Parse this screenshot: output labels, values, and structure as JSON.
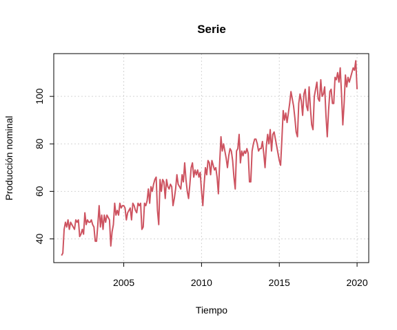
{
  "chart_data": {
    "type": "line",
    "title": "Serie",
    "xlabel": "Tiempo",
    "ylabel": "Producción nominal",
    "xlim": [
      2000.5,
      2020.75
    ],
    "ylim": [
      30,
      118
    ],
    "xticks": [
      2005,
      2010,
      2015,
      2020
    ],
    "yticks": [
      40,
      60,
      80,
      100
    ],
    "grid": true,
    "series": [
      {
        "color": "#cd5360",
        "x_start": 2001.0,
        "x_step": 0.08333333,
        "values": [
          33,
          34,
          44,
          47,
          45,
          48,
          44,
          47,
          46,
          45,
          44,
          48,
          47,
          48,
          41,
          42,
          44,
          42,
          51,
          46,
          48,
          47,
          47,
          48,
          46,
          45,
          39,
          39,
          46,
          54,
          45,
          50,
          44,
          50,
          47,
          50,
          49,
          48,
          37,
          43,
          46,
          55,
          50,
          52,
          50,
          55,
          53,
          54,
          54,
          53,
          48,
          51,
          52,
          53,
          48,
          55,
          54,
          52,
          51,
          55,
          54,
          55,
          44,
          45,
          55,
          54,
          56,
          61,
          55,
          62,
          60,
          63,
          65,
          66,
          52,
          46,
          65,
          60,
          65,
          64,
          57,
          65,
          62,
          61,
          63,
          62,
          54,
          57,
          61,
          67,
          63,
          62,
          61,
          67,
          64,
          72,
          65,
          60,
          57,
          63,
          70,
          72,
          66,
          69,
          67,
          69,
          66,
          68,
          60,
          54,
          63,
          70,
          67,
          73,
          72,
          67,
          73,
          71,
          69,
          70,
          66,
          59,
          72,
          83,
          77,
          80,
          77,
          74,
          70,
          75,
          78,
          77,
          73,
          66,
          61,
          77,
          78,
          84,
          72,
          77,
          75,
          77,
          76,
          78,
          76,
          64,
          64,
          77,
          80,
          82,
          82,
          80,
          77,
          78,
          78,
          81,
          76,
          70,
          79,
          84,
          80,
          86,
          77,
          84,
          85,
          82,
          79,
          76,
          73,
          71,
          82,
          94,
          90,
          93,
          89,
          93,
          97,
          102,
          99,
          96,
          91,
          85,
          83,
          97,
          101,
          98,
          92,
          101,
          103,
          96,
          94,
          104,
          95,
          88,
          86,
          100,
          103,
          106,
          99,
          98,
          107,
          100,
          101,
          104,
          92,
          83,
          94,
          102,
          103,
          97,
          97,
          108,
          107,
          110,
          106,
          112,
          101,
          88,
          97,
          109,
          104,
          108,
          106,
          108,
          110,
          112,
          111,
          115,
          103
        ]
      }
    ]
  }
}
